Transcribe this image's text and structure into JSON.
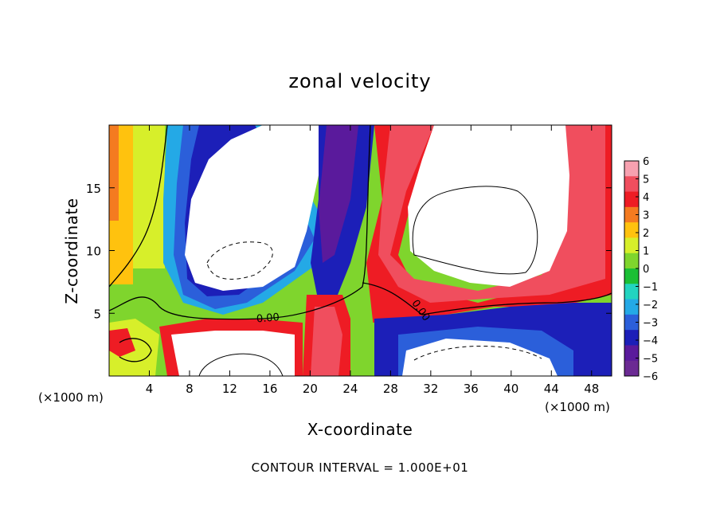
{
  "chart_data": {
    "type": "heatmap",
    "title": "zonal velocity",
    "xlabel": "X-coordinate",
    "ylabel": "Z-coordinate",
    "x_unit_label": "(×1000 m)",
    "xlim": [
      0,
      50
    ],
    "ylim": [
      0,
      20
    ],
    "x_ticks": [
      4,
      8,
      12,
      16,
      20,
      24,
      28,
      32,
      36,
      40,
      44,
      48
    ],
    "y_ticks": [
      5,
      10,
      15
    ],
    "colorbar": {
      "levels": [
        6,
        5,
        4,
        3,
        2,
        1,
        0,
        -1,
        -2,
        -3,
        -4,
        -5,
        -6
      ],
      "colors": [
        "#f7a1b0",
        "#f04e5e",
        "#ee1c24",
        "#f47b20",
        "#ffc20e",
        "#d7ef2a",
        "#7fd52d",
        "#1bbf35",
        "#22d4c0",
        "#24a9e6",
        "#2b5fda",
        "#1c1fb8",
        "#5a1a9c",
        "#6b2a93"
      ]
    },
    "contour_interval": "CONTOUR INTERVAL = 1.000E+01",
    "contour_labels": [
      "0.00",
      "0.00"
    ],
    "saturated_color": "#ffffff"
  }
}
